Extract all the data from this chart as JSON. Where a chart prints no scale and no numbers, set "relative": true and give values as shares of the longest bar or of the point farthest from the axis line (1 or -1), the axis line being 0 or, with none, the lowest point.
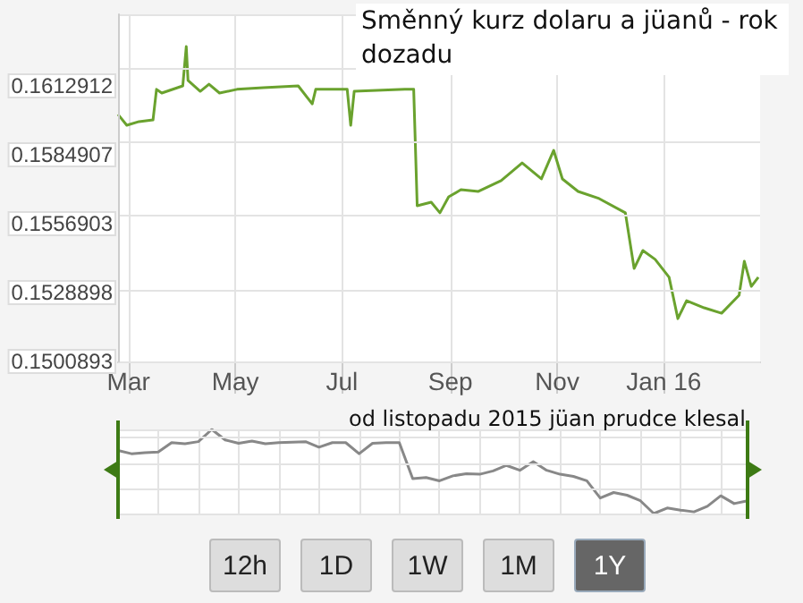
{
  "chart_data": [
    {
      "type": "line",
      "title": "Směnný kurz dolaru a jüanů - rok dozadu",
      "x": [
        "2015-02-23",
        "2015-02-28",
        "2015-03-07",
        "2015-03-15",
        "2015-03-17",
        "2015-03-20",
        "2015-04-01",
        "2015-04-03",
        "2015-04-04",
        "2015-04-11",
        "2015-04-16",
        "2015-04-22",
        "2015-05-02",
        "2015-05-17",
        "2015-06-06",
        "2015-06-14",
        "2015-06-16",
        "2015-07-04",
        "2015-07-06",
        "2015-07-08",
        "2015-08-06",
        "2015-08-11",
        "2015-08-13",
        "2015-08-21",
        "2015-08-26",
        "2015-08-31",
        "2015-09-07",
        "2015-09-17",
        "2015-09-30",
        "2015-10-12",
        "2015-10-23",
        "2015-10-30",
        "2015-11-04",
        "2015-11-13",
        "2015-11-25",
        "2015-12-10",
        "2015-12-15",
        "2015-12-20",
        "2015-12-27",
        "2016-01-04",
        "2016-01-09",
        "2016-01-14",
        "2016-01-24",
        "2016-02-03",
        "2016-02-13",
        "2016-02-16",
        "2016-02-20",
        "2016-02-24"
      ],
      "series": [
        {
          "color": "#6aa22e",
          "values": [
            0.16013,
            0.15969,
            0.15984,
            0.15991,
            0.16115,
            0.161,
            0.16129,
            0.16289,
            0.16151,
            0.16107,
            0.16136,
            0.161,
            0.16115,
            0.16122,
            0.16129,
            0.16056,
            0.16115,
            0.16115,
            0.15969,
            0.16107,
            0.16115,
            0.16115,
            0.15642,
            0.15656,
            0.15613,
            0.15678,
            0.15707,
            0.157,
            0.15744,
            0.15816,
            0.15751,
            0.15867,
            0.15751,
            0.157,
            0.15671,
            0.15613,
            0.15387,
            0.1546,
            0.15424,
            0.15351,
            0.15183,
            0.15256,
            0.15227,
            0.15205,
            0.15278,
            0.15416,
            0.15314,
            0.15351
          ]
        }
      ],
      "xlim": [
        "2015-02-23",
        "2016-02-25"
      ],
      "xticks": [
        {
          "value": "2015-03-01",
          "label": "Mar"
        },
        {
          "value": "2015-05-01",
          "label": "May"
        },
        {
          "value": "2015-07-01",
          "label": "Jul"
        },
        {
          "value": "2015-09-01",
          "label": "Sep"
        },
        {
          "value": "2015-11-01",
          "label": "Nov"
        },
        {
          "value": "2016-01-01",
          "label": "Jan 16"
        }
      ],
      "ylim": [
        0.1500893,
        0.1642
      ],
      "yticks": [
        0.1500893,
        0.1528898,
        0.1556903,
        0.1584907,
        0.1612912
      ],
      "grid": true,
      "marker": "none",
      "line_style": "solid"
    },
    {
      "type": "line",
      "relative": true,
      "categories": [
        null,
        null,
        null,
        null,
        null,
        null,
        null,
        null,
        null,
        null,
        null,
        null,
        null,
        null,
        null,
        null,
        null,
        null,
        null,
        null,
        null,
        null,
        null,
        null,
        null,
        null,
        null,
        null,
        null,
        null,
        null,
        null,
        null,
        null,
        null,
        null,
        null,
        null,
        null,
        null,
        null,
        null,
        null,
        null,
        null,
        null,
        null,
        null
      ],
      "series": [
        {
          "color": "#888888",
          "values": [
            0.75,
            0.711,
            0.724,
            0.731,
            0.843,
            0.829,
            0.855,
            1,
            0.875,
            0.835,
            0.862,
            0.829,
            0.843,
            0.849,
            0.855,
            0.789,
            0.843,
            0.843,
            0.711,
            0.835,
            0.843,
            0.843,
            0.415,
            0.428,
            0.389,
            0.448,
            0.474,
            0.467,
            0.507,
            0.572,
            0.514,
            0.618,
            0.514,
            0.467,
            0.441,
            0.389,
            0.184,
            0.25,
            0.218,
            0.152,
            0,
            0.066,
            0.04,
            0.02,
            0.086,
            0.211,
            0.118,
            0.152
          ]
        }
      ],
      "grid": true,
      "tick_labels": false,
      "marker": "none",
      "line_style": "solid",
      "annotations": [
        "od listopadu 2015 jüan prudce klesal",
        "12h",
        "1D",
        "1W",
        "1M",
        "1Y"
      ]
    }
  ]
}
